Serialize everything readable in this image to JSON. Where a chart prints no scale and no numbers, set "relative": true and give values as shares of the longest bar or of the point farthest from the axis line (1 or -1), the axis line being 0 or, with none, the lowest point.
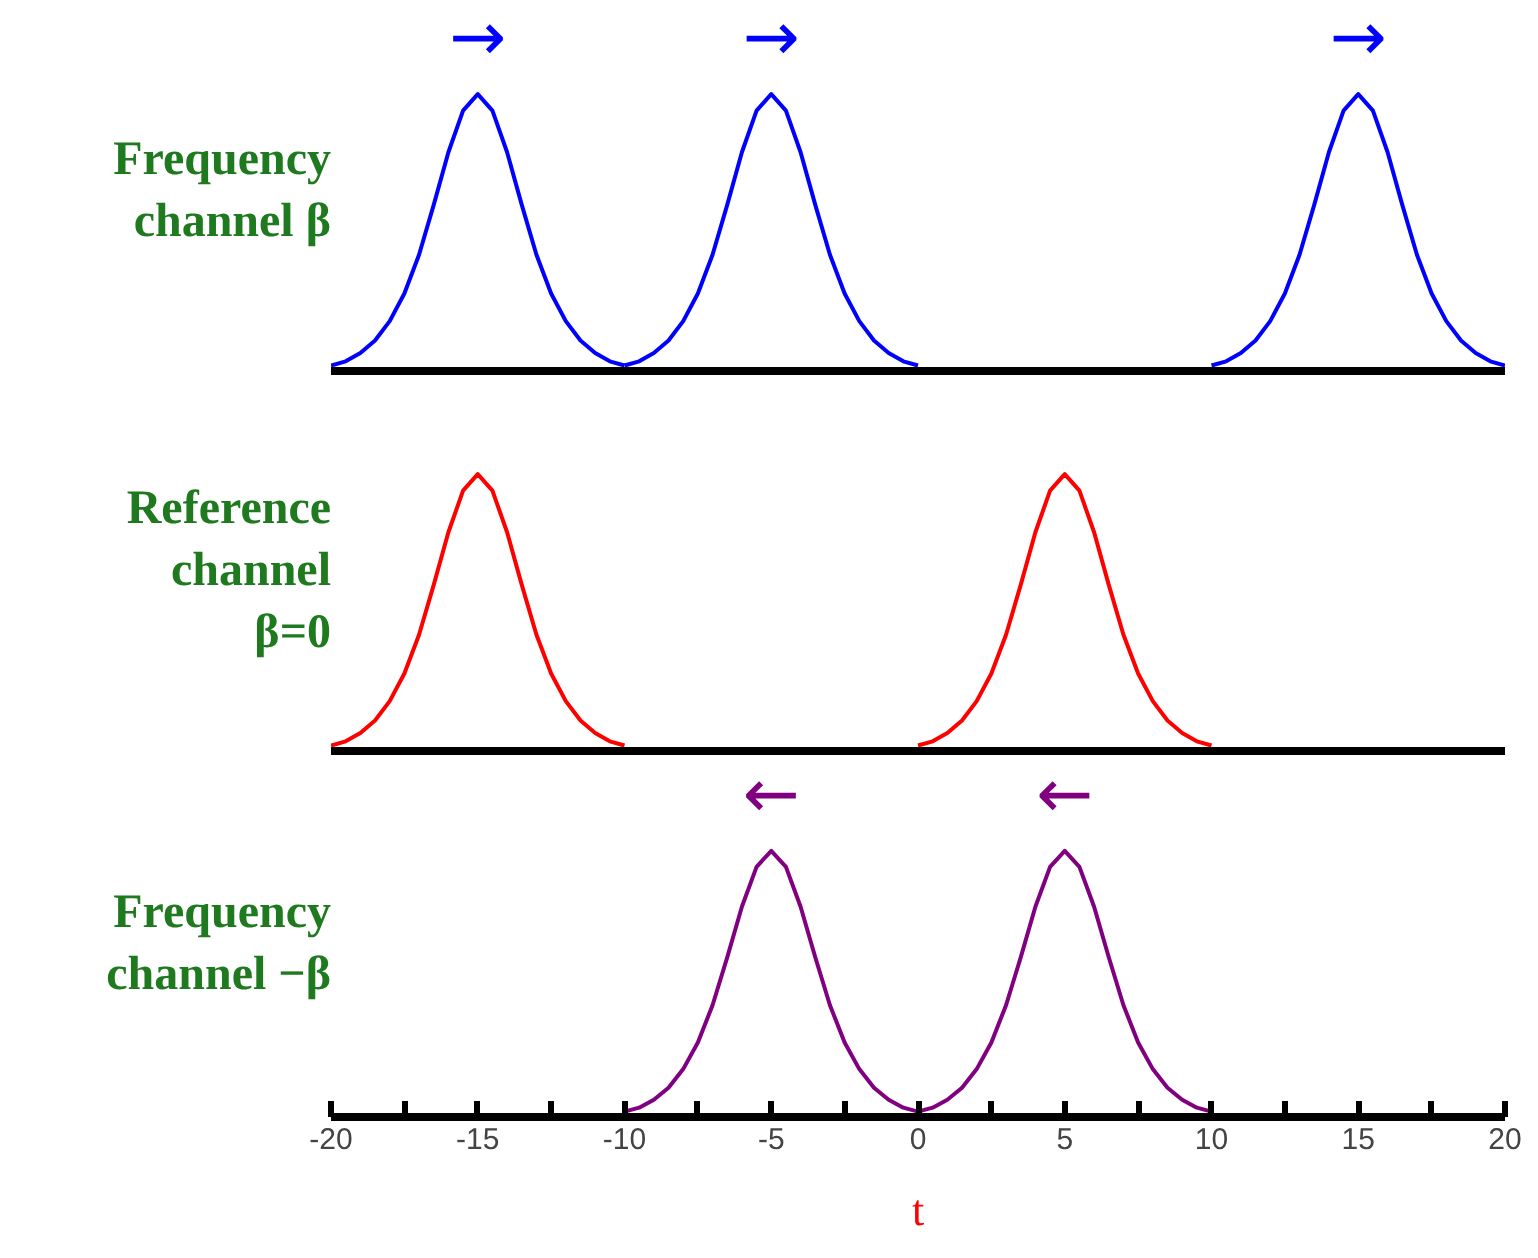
{
  "chart_data": [
    {
      "type": "line",
      "relative": true,
      "ylabel": "Frequency channel β",
      "xlim": [
        -20,
        20
      ],
      "tick_labels": false,
      "grid": false,
      "marker": "none",
      "line_style": "solid",
      "annotations": [
        "→",
        "→",
        "→"
      ],
      "series": [
        {
          "color": "#0000ff",
          "x": [
            -20,
            -19.5,
            -19,
            -18.5,
            -18,
            -17.5,
            -17,
            -16.5,
            -16,
            -15.5,
            -15,
            -14.5,
            -14,
            -13.5,
            -13,
            -12.5,
            -12,
            -11.5,
            -11,
            -10.5,
            -10
          ],
          "values": [
            0.02,
            0.035,
            0.065,
            0.11,
            0.18,
            0.28,
            0.42,
            0.6,
            0.79,
            0.94,
            1,
            0.94,
            0.79,
            0.6,
            0.42,
            0.28,
            0.18,
            0.11,
            0.065,
            0.035,
            0.02
          ]
        },
        {
          "color": "#0000ff",
          "x": [
            -10,
            -9.5,
            -9,
            -8.5,
            -8,
            -7.5,
            -7,
            -6.5,
            -6,
            -5.5,
            -5,
            -4.5,
            -4,
            -3.5,
            -3,
            -2.5,
            -2,
            -1.5,
            -1,
            -0.5,
            0
          ],
          "values": [
            0.02,
            0.035,
            0.065,
            0.11,
            0.18,
            0.28,
            0.42,
            0.6,
            0.79,
            0.94,
            1,
            0.94,
            0.79,
            0.6,
            0.42,
            0.28,
            0.18,
            0.11,
            0.065,
            0.035,
            0.02
          ]
        },
        {
          "color": "#0000ff",
          "x": [
            10,
            10.5,
            11,
            11.5,
            12,
            12.5,
            13,
            13.5,
            14,
            14.5,
            15,
            15.5,
            16,
            16.5,
            17,
            17.5,
            18,
            18.5,
            19,
            19.5,
            20
          ],
          "values": [
            0.02,
            0.035,
            0.065,
            0.11,
            0.18,
            0.28,
            0.42,
            0.6,
            0.79,
            0.94,
            1,
            0.94,
            0.79,
            0.6,
            0.42,
            0.28,
            0.18,
            0.11,
            0.065,
            0.035,
            0.02
          ]
        }
      ]
    },
    {
      "type": "line",
      "relative": true,
      "ylabel": "Reference channel β=0",
      "xlim": [
        -20,
        20
      ],
      "tick_labels": false,
      "grid": false,
      "marker": "none",
      "line_style": "solid",
      "series": [
        {
          "color": "#ff0000",
          "x": [
            -20,
            -19.5,
            -19,
            -18.5,
            -18,
            -17.5,
            -17,
            -16.5,
            -16,
            -15.5,
            -15,
            -14.5,
            -14,
            -13.5,
            -13,
            -12.5,
            -12,
            -11.5,
            -11,
            -10.5,
            -10
          ],
          "values": [
            0.02,
            0.035,
            0.065,
            0.11,
            0.18,
            0.28,
            0.42,
            0.6,
            0.79,
            0.94,
            1,
            0.94,
            0.79,
            0.6,
            0.42,
            0.28,
            0.18,
            0.11,
            0.065,
            0.035,
            0.02
          ]
        },
        {
          "color": "#ff0000",
          "x": [
            0,
            0.5,
            1,
            1.5,
            2,
            2.5,
            3,
            3.5,
            4,
            4.5,
            5,
            5.5,
            6,
            6.5,
            7,
            7.5,
            8,
            8.5,
            9,
            9.5,
            10
          ],
          "values": [
            0.02,
            0.035,
            0.065,
            0.11,
            0.18,
            0.28,
            0.42,
            0.6,
            0.79,
            0.94,
            1,
            0.94,
            0.79,
            0.6,
            0.42,
            0.28,
            0.18,
            0.11,
            0.065,
            0.035,
            0.02
          ]
        }
      ]
    },
    {
      "type": "line",
      "relative": true,
      "ylabel": "Frequency channel −β",
      "xlabel": "t",
      "xlim": [
        -20,
        20
      ],
      "tick_labels": "x",
      "grid": false,
      "marker": "none",
      "line_style": "solid",
      "xticks": [
        -20,
        {
          "value": -17.5,
          "label": null
        },
        -15,
        {
          "value": -12.5,
          "label": null
        },
        -10,
        {
          "value": -7.5,
          "label": null
        },
        -5,
        {
          "value": -2.5,
          "label": null
        },
        0,
        {
          "value": 2.5,
          "label": null
        },
        5,
        {
          "value": 7.5,
          "label": null
        },
        10,
        {
          "value": 12.5,
          "label": null
        },
        15,
        {
          "value": 17.5,
          "label": null
        },
        20
      ],
      "annotations": [
        "←",
        "←"
      ],
      "series": [
        {
          "color": "#800080",
          "x": [
            -10,
            -9.5,
            -9,
            -8.5,
            -8,
            -7.5,
            -7,
            -6.5,
            -6,
            -5.5,
            -5,
            -4.5,
            -4,
            -3.5,
            -3,
            -2.5,
            -2,
            -1.5,
            -1,
            -0.5,
            0
          ],
          "values": [
            0.02,
            0.035,
            0.065,
            0.11,
            0.18,
            0.28,
            0.42,
            0.6,
            0.79,
            0.94,
            1,
            0.94,
            0.79,
            0.6,
            0.42,
            0.28,
            0.18,
            0.11,
            0.065,
            0.035,
            0.02
          ]
        },
        {
          "color": "#800080",
          "x": [
            0,
            0.5,
            1,
            1.5,
            2,
            2.5,
            3,
            3.5,
            4,
            4.5,
            5,
            5.5,
            6,
            6.5,
            7,
            7.5,
            8,
            8.5,
            9,
            9.5,
            10
          ],
          "values": [
            0.02,
            0.035,
            0.065,
            0.11,
            0.18,
            0.28,
            0.42,
            0.6,
            0.79,
            0.94,
            1,
            0.94,
            0.79,
            0.6,
            0.42,
            0.28,
            0.18,
            0.11,
            0.065,
            0.035,
            0.02
          ]
        }
      ]
    }
  ]
}
